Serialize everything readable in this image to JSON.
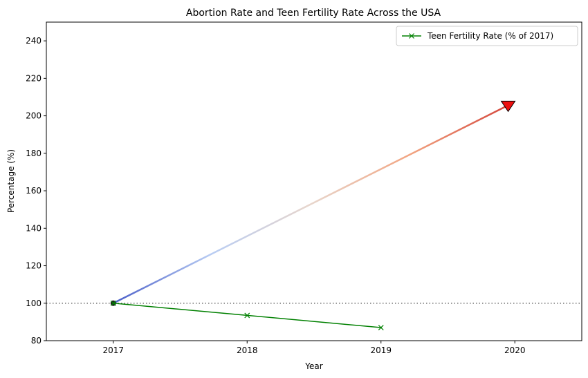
{
  "chart_data": {
    "type": "line",
    "title": "Abortion Rate and Teen Fertility Rate Across the USA",
    "xlabel": "Year",
    "ylabel": "Percentage (%)",
    "xlim": [
      2016.5,
      2020.5
    ],
    "ylim": [
      80,
      250
    ],
    "xticks": [
      2017,
      2018,
      2019,
      2020
    ],
    "yticks": [
      80,
      100,
      120,
      140,
      160,
      180,
      200,
      220,
      240
    ],
    "reference_line": {
      "y": 100,
      "style": "dotted",
      "color": "#666666"
    },
    "series": [
      {
        "name": "Teen Fertility Rate (% of 2017)",
        "x": [
          2017,
          2018,
          2019
        ],
        "y": [
          100,
          93.5,
          87
        ],
        "color": "#008000",
        "marker": "x"
      }
    ],
    "gradient_arrow": {
      "x": [
        2017,
        2019.95
      ],
      "y": [
        100,
        205.6
      ],
      "colormap": [
        "#4a5ec9",
        "#b9cdf3",
        "#e8d6cc",
        "#f2a582",
        "#d4463b"
      ],
      "start_marker_color": "#1f1f1f",
      "head_color": "#ee1010"
    },
    "grid": false,
    "legend_position": "upper right"
  }
}
